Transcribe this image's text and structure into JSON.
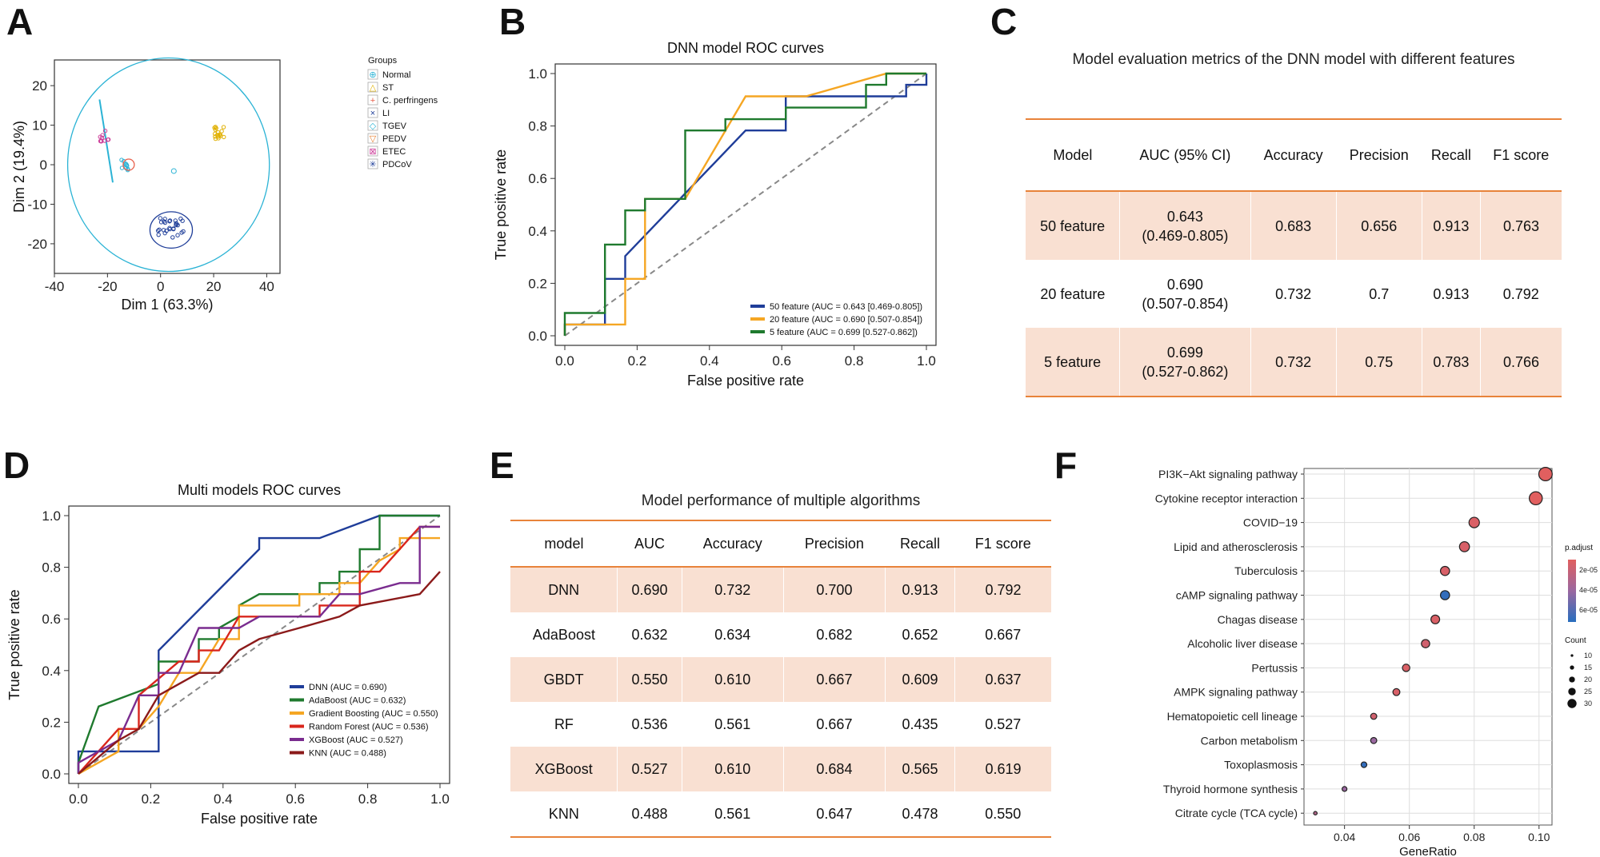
{
  "panels": {
    "A": "A",
    "B": "B",
    "C": "C",
    "D": "D",
    "E": "E",
    "F": "F"
  },
  "chart_data": [
    {
      "id": "A",
      "type": "scatter",
      "title": "",
      "xlabel": "Dim 1 (63.3%)",
      "ylabel": "Dim 2 (19.4%)",
      "xlim": [
        -40,
        45
      ],
      "ylim": [
        -27.5,
        26.5
      ],
      "xticks": [
        -40,
        -20,
        0,
        20,
        40
      ],
      "yticks": [
        20,
        10,
        0,
        -10,
        -20
      ],
      "legend_title": "Groups",
      "legend": [
        {
          "name": "Normal",
          "color": "#2bb3d5",
          "marker": "⊕"
        },
        {
          "name": "ST",
          "color": "#e0b000",
          "marker": "△"
        },
        {
          "name": "C. perfringens",
          "color": "#e8604c",
          "marker": "+"
        },
        {
          "name": "LI",
          "color": "#1f3e99",
          "marker": "×"
        },
        {
          "name": "TGEV",
          "color": "#2bb3d5",
          "marker": "◇"
        },
        {
          "name": "PEDV",
          "color": "#e87d2a",
          "marker": "▽"
        },
        {
          "name": "ETEC",
          "color": "#cc3d99",
          "marker": "⊠"
        },
        {
          "name": "PDCoV",
          "color": "#1f3e99",
          "marker": "✳"
        }
      ],
      "clusters": [
        {
          "group": "Normal/C. perfringens",
          "cx": -13,
          "cy": 0,
          "color": "#2bb3d5"
        },
        {
          "group": "ST/PEDV",
          "cx": 22,
          "cy": 8,
          "color": "#e0b000"
        },
        {
          "group": "PDCoV",
          "cx": 4,
          "cy": -16,
          "color": "#1f3e99"
        },
        {
          "group": "ETEC",
          "cx": -21,
          "cy": 7.5,
          "color": "#cc3d99"
        }
      ],
      "ellipses": [
        {
          "group": "Normal",
          "cx": 3,
          "cy": 0,
          "rx": 38,
          "ry": 27,
          "color": "#2bb3d5"
        },
        {
          "group": "PDCoV",
          "cx": 4,
          "cy": -16.5,
          "rx": 8,
          "ry": 4.6,
          "color": "#1f3e99"
        }
      ]
    },
    {
      "id": "B",
      "type": "line",
      "title": "DNN model ROC curves",
      "xlabel": "False positive rate",
      "ylabel": "True positive rate",
      "xlim": [
        0,
        1
      ],
      "ylim": [
        0,
        1
      ],
      "ticks": [
        0.0,
        0.2,
        0.4,
        0.6,
        0.8,
        1.0
      ],
      "tick_labels": [
        "0.0",
        "0.2",
        "0.4",
        "0.6",
        "0.8",
        "1.0"
      ],
      "series": [
        {
          "name": "50 feature (AUC = 0.643 [0.469-0.805])",
          "color": "#1f3d99",
          "points": [
            [
              0,
              0
            ],
            [
              0,
              0.043
            ],
            [
              0.111,
              0.043
            ],
            [
              0.111,
              0.217
            ],
            [
              0.167,
              0.217
            ],
            [
              0.167,
              0.304
            ],
            [
              0.5,
              0.783
            ],
            [
              0.611,
              0.783
            ],
            [
              0.611,
              0.913
            ],
            [
              0.944,
              0.913
            ],
            [
              0.944,
              0.957
            ],
            [
              1,
              0.957
            ],
            [
              1,
              1
            ]
          ]
        },
        {
          "name": "20 feature (AUC = 0.690 [0.507-0.854])",
          "color": "#f5a623",
          "points": [
            [
              0,
              0
            ],
            [
              0,
              0.043
            ],
            [
              0.167,
              0.043
            ],
            [
              0.167,
              0.087
            ],
            [
              0.167,
              0.217
            ],
            [
              0.222,
              0.217
            ],
            [
              0.222,
              0.522
            ],
            [
              0.333,
              0.522
            ],
            [
              0.5,
              0.913
            ],
            [
              0.667,
              0.913
            ],
            [
              0.889,
              1
            ],
            [
              1,
              1
            ]
          ]
        },
        {
          "name": "5 feature (AUC = 0.699 [0.527-0.862])",
          "color": "#1f7a2e",
          "points": [
            [
              0,
              0
            ],
            [
              0,
              0.087
            ],
            [
              0.111,
              0.087
            ],
            [
              0.111,
              0.348
            ],
            [
              0.167,
              0.348
            ],
            [
              0.167,
              0.478
            ],
            [
              0.222,
              0.478
            ],
            [
              0.222,
              0.522
            ],
            [
              0.333,
              0.522
            ],
            [
              0.333,
              0.783
            ],
            [
              0.444,
              0.783
            ],
            [
              0.444,
              0.826
            ],
            [
              0.611,
              0.826
            ],
            [
              0.611,
              0.87
            ],
            [
              0.833,
              0.87
            ],
            [
              0.833,
              0.957
            ],
            [
              0.889,
              0.957
            ],
            [
              0.889,
              1
            ],
            [
              1,
              1
            ]
          ]
        }
      ]
    },
    {
      "id": "D",
      "type": "line",
      "title": "Multi models ROC curves",
      "xlabel": "False positive rate",
      "ylabel": "True positive rate",
      "xlim": [
        0,
        1
      ],
      "ylim": [
        0,
        1
      ],
      "ticks": [
        0.0,
        0.2,
        0.4,
        0.6,
        0.8,
        1.0
      ],
      "tick_labels": [
        "0.0",
        "0.2",
        "0.4",
        "0.6",
        "0.8",
        "1.0"
      ],
      "series": [
        {
          "name": "DNN (AUC = 0.690)",
          "color": "#1f3d99",
          "points": [
            [
              0,
              0
            ],
            [
              0,
              0.087
            ],
            [
              0.222,
              0.087
            ],
            [
              0.222,
              0.478
            ],
            [
              0.5,
              0.87
            ],
            [
              0.5,
              0.913
            ],
            [
              0.667,
              0.913
            ],
            [
              0.833,
              1
            ],
            [
              1,
              1
            ]
          ]
        },
        {
          "name": "AdaBoost (AUC = 0.632)",
          "color": "#1f7a2e",
          "points": [
            [
              0,
              0
            ],
            [
              0,
              0.043
            ],
            [
              0.056,
              0.261
            ],
            [
              0.222,
              0.348
            ],
            [
              0.222,
              0.435
            ],
            [
              0.333,
              0.435
            ],
            [
              0.333,
              0.522
            ],
            [
              0.389,
              0.522
            ],
            [
              0.389,
              0.565
            ],
            [
              0.444,
              0.609
            ],
            [
              0.444,
              0.652
            ],
            [
              0.5,
              0.696
            ],
            [
              0.667,
              0.696
            ],
            [
              0.667,
              0.739
            ],
            [
              0.722,
              0.739
            ],
            [
              0.722,
              0.783
            ],
            [
              0.778,
              0.783
            ],
            [
              0.778,
              0.87
            ],
            [
              0.833,
              0.87
            ],
            [
              0.833,
              1
            ],
            [
              1,
              1
            ]
          ]
        },
        {
          "name": "Gradient Boosting (AUC = 0.550)",
          "color": "#f5a623",
          "points": [
            [
              0,
              0
            ],
            [
              0.111,
              0.087
            ],
            [
              0.111,
              0.174
            ],
            [
              0.167,
              0.174
            ],
            [
              0.222,
              0.261
            ],
            [
              0.278,
              0.391
            ],
            [
              0.333,
              0.391
            ],
            [
              0.389,
              0.522
            ],
            [
              0.444,
              0.522
            ],
            [
              0.444,
              0.652
            ],
            [
              0.611,
              0.652
            ],
            [
              0.611,
              0.696
            ],
            [
              0.722,
              0.696
            ],
            [
              0.722,
              0.739
            ],
            [
              0.778,
              0.739
            ],
            [
              0.833,
              0.826
            ],
            [
              0.889,
              0.87
            ],
            [
              0.889,
              0.913
            ],
            [
              1,
              0.913
            ]
          ]
        },
        {
          "name": "Random Forest (AUC = 0.536)",
          "color": "#d9261c",
          "points": [
            [
              0,
              0
            ],
            [
              0.111,
              0.174
            ],
            [
              0.167,
              0.174
            ],
            [
              0.167,
              0.304
            ],
            [
              0.278,
              0.435
            ],
            [
              0.333,
              0.435
            ],
            [
              0.333,
              0.478
            ],
            [
              0.389,
              0.478
            ],
            [
              0.444,
              0.609
            ],
            [
              0.667,
              0.609
            ],
            [
              0.667,
              0.652
            ],
            [
              0.778,
              0.652
            ],
            [
              0.778,
              0.783
            ],
            [
              0.833,
              0.783
            ],
            [
              0.944,
              0.957
            ],
            [
              1,
              0.957
            ]
          ]
        },
        {
          "name": "XGBoost (AUC = 0.527)",
          "color": "#7a2c8f",
          "points": [
            [
              0,
              0
            ],
            [
              0,
              0.043
            ],
            [
              0.111,
              0.13
            ],
            [
              0.167,
              0.304
            ],
            [
              0.222,
              0.304
            ],
            [
              0.222,
              0.391
            ],
            [
              0.278,
              0.391
            ],
            [
              0.333,
              0.565
            ],
            [
              0.444,
              0.565
            ],
            [
              0.5,
              0.609
            ],
            [
              0.667,
              0.609
            ],
            [
              0.722,
              0.696
            ],
            [
              0.778,
              0.696
            ],
            [
              0.889,
              0.739
            ],
            [
              0.944,
              0.739
            ],
            [
              0.944,
              0.957
            ],
            [
              1,
              0.957
            ]
          ]
        },
        {
          "name": "KNN (AUC = 0.488)",
          "color": "#8b1a1a",
          "points": [
            [
              0,
              0
            ],
            [
              0.111,
              0.13
            ],
            [
              0.167,
              0.174
            ],
            [
              0.222,
              0.304
            ],
            [
              0.278,
              0.348
            ],
            [
              0.333,
              0.391
            ],
            [
              0.389,
              0.391
            ],
            [
              0.444,
              0.478
            ],
            [
              0.5,
              0.522
            ],
            [
              0.611,
              0.565
            ],
            [
              0.722,
              0.609
            ],
            [
              0.778,
              0.652
            ],
            [
              0.944,
              0.696
            ],
            [
              1,
              0.783
            ]
          ]
        }
      ]
    },
    {
      "id": "F",
      "type": "scatter",
      "subtype": "dot",
      "title": "",
      "xlabel": "GeneRatio",
      "xlim": [
        0.0275,
        0.104
      ],
      "xticks": [
        0.04,
        0.06,
        0.08,
        0.1
      ],
      "xtick_labels": [
        "0.04",
        "0.06",
        "0.08",
        "0.10"
      ],
      "size_legend_title": "Count",
      "size_legend": [
        10,
        15,
        20,
        25,
        30
      ],
      "color_legend_title": "p.adjust",
      "color_legend_labels": [
        "2e-05",
        "4e-05",
        "6e-05"
      ],
      "terms": [
        {
          "term": "PI3K−Akt signaling pathway",
          "generatio": 0.102,
          "count": 33,
          "p_adjust": 5e-06
        },
        {
          "term": "Cytokine receptor interaction",
          "generatio": 0.099,
          "count": 32,
          "p_adjust": 5e-06
        },
        {
          "term": "COVID−19",
          "generatio": 0.08,
          "count": 26,
          "p_adjust": 8e-06
        },
        {
          "term": "Lipid and atherosclerosis",
          "generatio": 0.077,
          "count": 25,
          "p_adjust": 9e-06
        },
        {
          "term": "Tuberculosis",
          "generatio": 0.071,
          "count": 23,
          "p_adjust": 9e-06
        },
        {
          "term": "cAMP signaling pathway",
          "generatio": 0.071,
          "count": 23,
          "p_adjust": 6.2e-05
        },
        {
          "term": "Chagas disease",
          "generatio": 0.068,
          "count": 22,
          "p_adjust": 8e-06
        },
        {
          "term": "Alcoholic liver disease",
          "generatio": 0.065,
          "count": 21,
          "p_adjust": 1.2e-05
        },
        {
          "term": "Pertussis",
          "generatio": 0.059,
          "count": 19,
          "p_adjust": 8e-06
        },
        {
          "term": "AMPK signaling pathway",
          "generatio": 0.056,
          "count": 18,
          "p_adjust": 9e-06
        },
        {
          "term": "Hematopoietic cell lineage",
          "generatio": 0.049,
          "count": 16,
          "p_adjust": 1.2e-05
        },
        {
          "term": "Carbon metabolism",
          "generatio": 0.049,
          "count": 16,
          "p_adjust": 3.5e-05
        },
        {
          "term": "Toxoplasmosis",
          "generatio": 0.046,
          "count": 15,
          "p_adjust": 6.2e-05
        },
        {
          "term": "Thyroid hormone synthesis",
          "generatio": 0.04,
          "count": 13,
          "p_adjust": 3.5e-05
        },
        {
          "term": "Citrate cycle (TCA cycle)",
          "generatio": 0.031,
          "count": 10,
          "p_adjust": 2.5e-05
        }
      ]
    },
    {
      "id": "C",
      "type": "table",
      "title": "Model evaluation metrics of the DNN model with different features",
      "columns": [
        "Model",
        "AUC (95% CI)",
        "Accuracy",
        "Precision",
        "Recall",
        "F1 score"
      ],
      "rows": [
        [
          "50 feature",
          "0.643",
          "(0.469-0.805)",
          "0.683",
          "0.656",
          "0.913",
          "0.763"
        ],
        [
          "20 feature",
          "0.690",
          "(0.507-0.854)",
          "0.732",
          "0.7",
          "0.913",
          "0.792"
        ],
        [
          "5 feature",
          "0.699",
          "(0.527-0.862)",
          "0.732",
          "0.75",
          "0.783",
          "0.766"
        ]
      ]
    },
    {
      "id": "E",
      "type": "table",
      "title": "Model performance of multiple algorithms",
      "columns": [
        "model",
        "AUC",
        "Accuracy",
        "Precision",
        "Recall",
        "F1 score"
      ],
      "rows": [
        [
          "DNN",
          "0.690",
          "0.732",
          "0.700",
          "0.913",
          "0.792"
        ],
        [
          "AdaBoost",
          "0.632",
          "0.634",
          "0.682",
          "0.652",
          "0.667"
        ],
        [
          "GBDT",
          "0.550",
          "0.610",
          "0.667",
          "0.609",
          "0.637"
        ],
        [
          "RF",
          "0.536",
          "0.561",
          "0.667",
          "0.435",
          "0.527"
        ],
        [
          "XGBoost",
          "0.527",
          "0.610",
          "0.684",
          "0.565",
          "0.619"
        ],
        [
          "KNN",
          "0.488",
          "0.561",
          "0.647",
          "0.478",
          "0.550"
        ]
      ]
    }
  ]
}
